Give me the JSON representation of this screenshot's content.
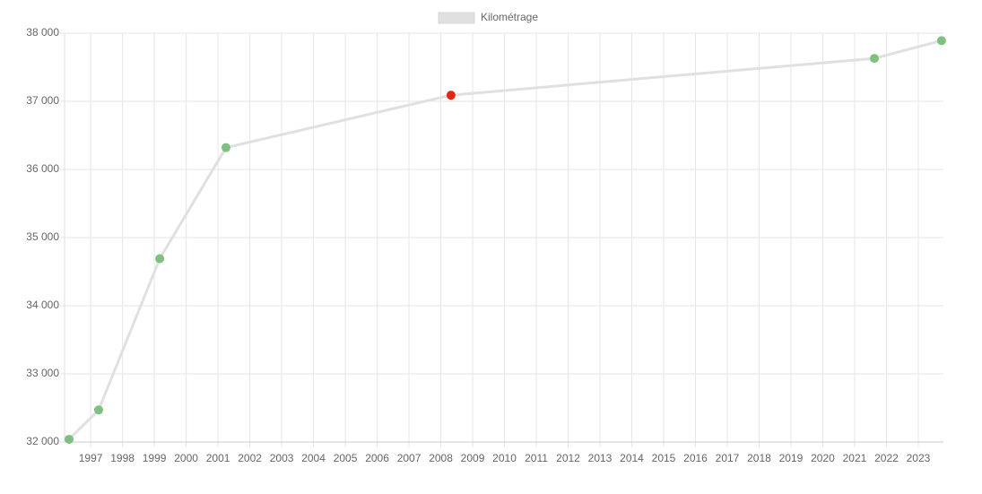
{
  "chart_data": {
    "type": "line",
    "x": [
      1996.32,
      1997.25,
      1999.17,
      2001.25,
      2008.32,
      2021.62,
      2023.73
    ],
    "series": [
      {
        "name": "Kilométrage",
        "color": "#e0e0e0",
        "values": [
          32040,
          32470,
          34690,
          36320,
          37090,
          37630,
          37890
        ],
        "point_colors": [
          "#7fbf7f",
          "#7fbf7f",
          "#7fbf7f",
          "#7fbf7f",
          "#e8260f",
          "#7fbf7f",
          "#7fbf7f"
        ]
      }
    ],
    "xlim": [
      1996.18,
      2023.79
    ],
    "xticks": [
      1997,
      1998,
      1999,
      2000,
      2001,
      2002,
      2003,
      2004,
      2005,
      2006,
      2007,
      2008,
      2009,
      2010,
      2011,
      2012,
      2013,
      2014,
      2015,
      2016,
      2017,
      2018,
      2019,
      2020,
      2021,
      2022,
      2023
    ],
    "ylim": [
      32000,
      38000
    ],
    "yticks": [
      {
        "value": 32000,
        "label": "32 000"
      },
      {
        "value": 33000,
        "label": "33 000"
      },
      {
        "value": 34000,
        "label": "34 000"
      },
      {
        "value": 35000,
        "label": "35 000"
      },
      {
        "value": 36000,
        "label": "36 000"
      },
      {
        "value": 37000,
        "label": "37 000"
      },
      {
        "value": 38000,
        "label": "38 000"
      }
    ],
    "grid": true,
    "legend": "top"
  }
}
